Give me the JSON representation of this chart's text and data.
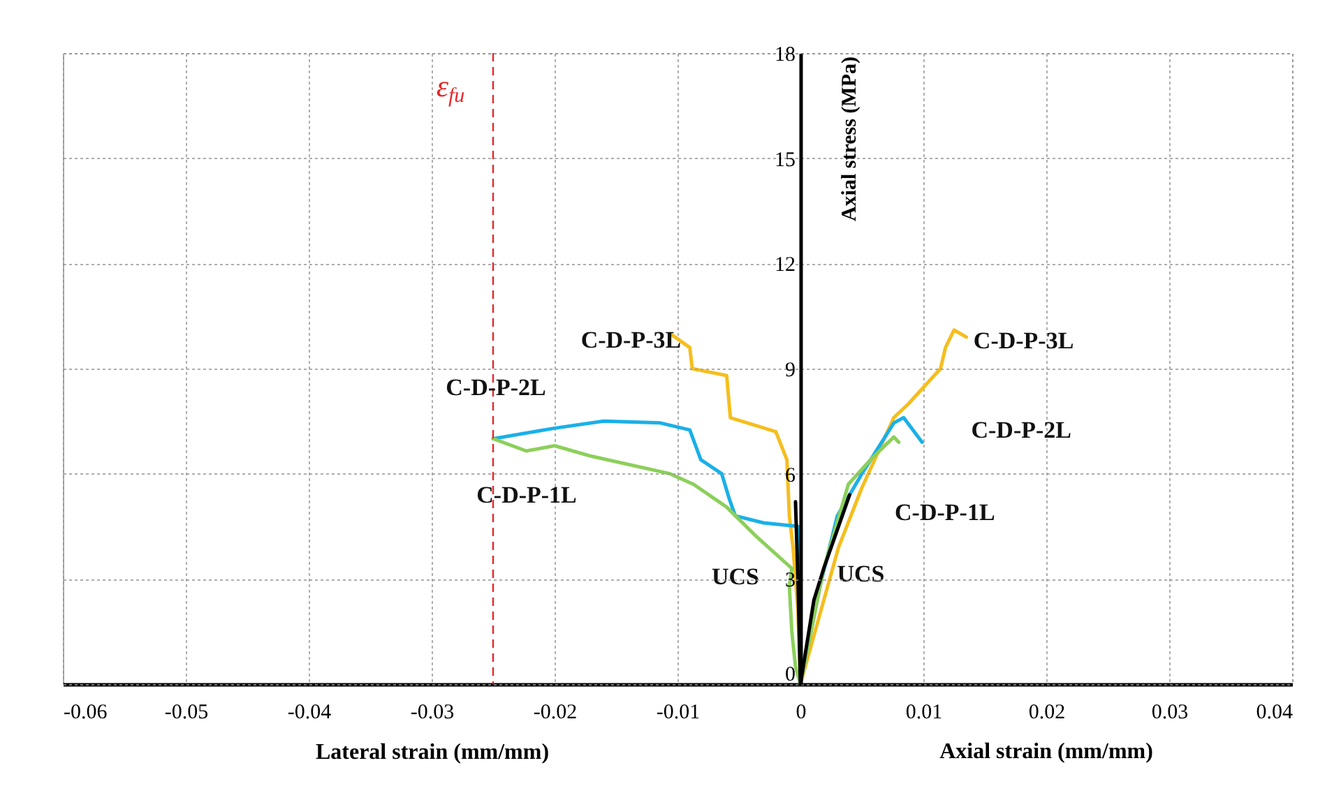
{
  "chart_data": {
    "type": "line",
    "xlabel": "Lateral strain (mm/mm)",
    "ylabel": "Axial stress (MPa)",
    "xlim": [
      -0.06,
      0.04
    ],
    "xticks": [
      -0.06,
      -0.05,
      -0.04,
      -0.03,
      -0.02,
      -0.01,
      0,
      0.01,
      0.02,
      0.03,
      0.04
    ],
    "ylim": [
      0,
      18
    ],
    "yticks": [
      0,
      3,
      6,
      9,
      12,
      15,
      18
    ],
    "grid": true,
    "legend": false,
    "marker": "none",
    "line_style": "solid",
    "series": [
      {
        "name": "C-D-P-3L",
        "color": "#f5be1e",
        "x": [
          -0.0106,
          -0.009,
          -0.0088,
          -0.006,
          -0.0057,
          -0.002,
          -0.0011,
          -0.0009,
          -0.0006,
          -0.0002,
          0,
          0.0031,
          0.005,
          0.0076,
          0.0088,
          0.0114,
          0.0118,
          0.0125,
          0.0135
        ],
        "values": [
          10.0,
          9.6,
          9.0,
          8.8,
          7.6,
          7.2,
          6.4,
          4.8,
          3.9,
          2.1,
          0,
          3.9,
          5.6,
          7.6,
          8.0,
          9.0,
          9.6,
          10.1,
          9.9
        ]
      },
      {
        "name": "C-D-P-2L",
        "color": "#1ab0e8",
        "x": [
          -0.025,
          -0.02,
          -0.016,
          -0.0114,
          -0.009,
          -0.0081,
          -0.0064,
          -0.0058,
          -0.0053,
          -0.003,
          -0.0002,
          0,
          0.0016,
          0.003,
          0.005,
          0.0076,
          0.0084,
          0.0099
        ],
        "values": [
          7.0,
          7.3,
          7.5,
          7.45,
          7.25,
          6.4,
          6.0,
          5.3,
          4.8,
          4.6,
          4.5,
          0,
          2.8,
          4.8,
          6.0,
          7.45,
          7.6,
          6.9
        ]
      },
      {
        "name": "C-D-P-1L",
        "color": "#8ccf5a",
        "x": [
          -0.025,
          -0.0223,
          -0.02,
          -0.017,
          -0.0106,
          -0.0087,
          -0.006,
          -0.0037,
          -0.0007,
          -0.0009,
          -0.0007,
          -0.0004,
          0,
          0.0019,
          0.0039,
          0.0057,
          0.0076,
          0.008
        ],
        "values": [
          7.0,
          6.65,
          6.8,
          6.5,
          6.0,
          5.7,
          5.05,
          4.25,
          3.3,
          2.8,
          1.5,
          0.5,
          0,
          3.3,
          5.7,
          6.4,
          7.05,
          6.9
        ]
      },
      {
        "name": "UCS",
        "color": "#000000",
        "x": [
          -0.0004,
          -0.0002,
          0,
          0.0011,
          0.0019,
          0.004
        ],
        "values": [
          5.2,
          3.0,
          0,
          2.4,
          3.3,
          5.4
        ]
      }
    ],
    "ref_lines": [
      {
        "axis": "x",
        "value": -0.025,
        "label": "ε$_{fu}$",
        "color": "#e8262a",
        "line_style": "dashed"
      }
    ],
    "annotations": [
      "Axial strain (mm/mm)"
    ]
  }
}
